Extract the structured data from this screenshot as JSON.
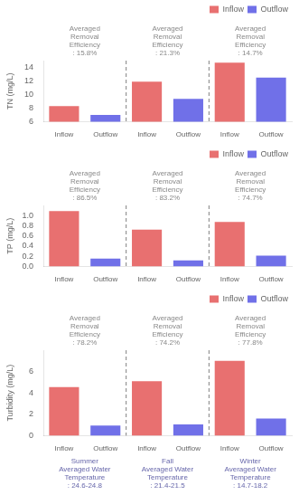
{
  "chart_data": [
    {
      "type": "bar",
      "categories": [
        "Inflow",
        "Outflow",
        "Inflow",
        "Outflow",
        "Inflow",
        "Outflow"
      ],
      "series": [
        {
          "name": "Inflow",
          "color": "#E87070",
          "values": [
            8.3,
            null,
            11.9,
            null,
            14.7,
            null
          ]
        },
        {
          "name": "Outflow",
          "color": "#7070E8",
          "values": [
            null,
            7.0,
            null,
            9.35,
            null,
            12.5
          ]
        }
      ],
      "ylabel": "TN (mg/L)",
      "ylim": [
        6,
        15
      ],
      "yticks": [
        6,
        8,
        10,
        12,
        14
      ],
      "grid": false,
      "legend": "upper right",
      "annotations": [
        "Averaged\nRemoval\nEfficiency\n: 15.8%",
        "Averaged\nRemoval\nEfficiency\n: 21.3%",
        "Averaged\nRemoval\nEfficiency\n: 14.7%"
      ]
    },
    {
      "type": "bar",
      "categories": [
        "Inflow",
        "Outflow",
        "Inflow",
        "Outflow",
        "Inflow",
        "Outflow"
      ],
      "series": [
        {
          "name": "Inflow",
          "color": "#E87070",
          "values": [
            1.09,
            null,
            0.725,
            null,
            0.875,
            null
          ]
        },
        {
          "name": "Outflow",
          "color": "#7070E8",
          "values": [
            null,
            0.155,
            null,
            0.12,
            null,
            0.21
          ]
        }
      ],
      "ylabel": "TP (mg/L)",
      "ylim": [
        0.0,
        1.2
      ],
      "yticks": [
        {
          "value": 0.0,
          "label": "0.0"
        },
        0.2,
        0.4,
        0.6,
        0.8,
        {
          "value": 1.0,
          "label": "1.0"
        }
      ],
      "grid": false,
      "legend": "upper right",
      "annotations": [
        "Averaged\nRemoval\nEfficiency\n: 86.5%",
        "Averaged\nRemoval\nEfficiency\n: 83.2%",
        "Averaged\nRemoval\nEfficiency\n: 74.7%"
      ]
    },
    {
      "type": "bar",
      "categories": [
        "Inflow",
        "Outflow",
        "Inflow",
        "Outflow",
        "Inflow",
        "Outflow"
      ],
      "series": [
        {
          "name": "Inflow",
          "color": "#E87070",
          "values": [
            4.55,
            null,
            5.1,
            null,
            7.0,
            null
          ]
        },
        {
          "name": "Outflow",
          "color": "#7070E8",
          "values": [
            null,
            0.95,
            null,
            1.05,
            null,
            1.6
          ]
        }
      ],
      "ylabel": "Turbidity (mg/L)",
      "ylim": [
        0,
        8
      ],
      "yticks": [
        0,
        2,
        4,
        6
      ],
      "grid": false,
      "legend": "upper right",
      "annotations": [
        "Averaged\nRemoval\nEfficiency\n: 78.2%",
        "Averaged\nRemoval\nEfficiency\n: 74.2%",
        "Averaged\nRemoval\nEfficiency\n: 77.8%",
        "Summer\nAveraged Water\nTemperature\n: 24.6-24.8",
        "Fall\nAveraged Water\nTemperature\n: 21.4-21.5",
        "Winter\nAveraged Water\nTemperature\n: 14.7-18.2"
      ]
    }
  ]
}
